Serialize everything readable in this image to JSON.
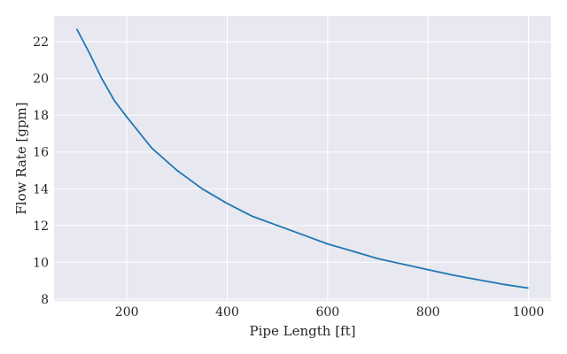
{
  "chart_data": {
    "type": "line",
    "title": "",
    "xlabel": "Pipe Length [ft]",
    "ylabel": "Flow Rate [gpm]",
    "xlim": [
      55,
      1045
    ],
    "ylim": [
      7.9,
      23.4
    ],
    "xticks": [
      200,
      400,
      600,
      800,
      1000
    ],
    "yticks": [
      8,
      10,
      12,
      14,
      16,
      18,
      20,
      22
    ],
    "grid": true,
    "legend": "none",
    "colors": {
      "background": "#e8e8f0",
      "grid": "#ffffff",
      "line": "#1f77b4",
      "text": "#262626"
    },
    "series": [
      {
        "x": [
          100,
          125,
          150,
          175,
          200,
          250,
          300,
          350,
          400,
          450,
          500,
          550,
          600,
          650,
          700,
          750,
          800,
          850,
          900,
          950,
          1000
        ],
        "y": [
          22.7,
          21.4,
          20.0,
          18.8,
          17.9,
          16.2,
          15.0,
          14.0,
          13.2,
          12.5,
          12.0,
          11.5,
          11.0,
          10.6,
          10.2,
          9.9,
          9.6,
          9.3,
          9.05,
          8.8,
          8.6
        ]
      }
    ]
  }
}
